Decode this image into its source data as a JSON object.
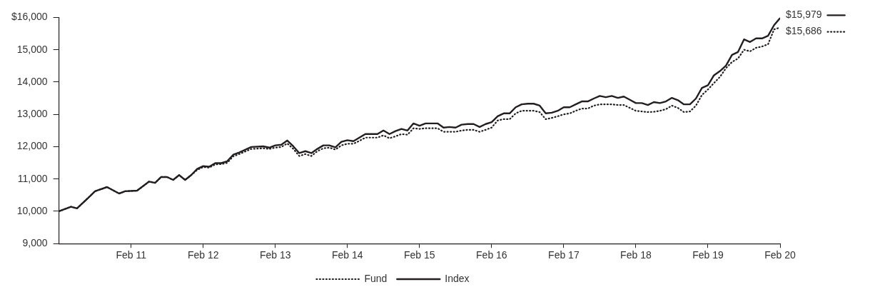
{
  "chart_data": {
    "type": "line",
    "xlim": [
      "2010-02",
      "2020-02"
    ],
    "xticks": [
      {
        "value": "2011-02",
        "label": "Feb 11"
      },
      {
        "value": "2012-02",
        "label": "Feb 12"
      },
      {
        "value": "2013-02",
        "label": "Feb 13"
      },
      {
        "value": "2014-02",
        "label": "Feb 14"
      },
      {
        "value": "2015-02",
        "label": "Feb 15"
      },
      {
        "value": "2016-02",
        "label": "Feb 16"
      },
      {
        "value": "2017-02",
        "label": "Feb 17"
      },
      {
        "value": "2018-02",
        "label": "Feb 18"
      },
      {
        "value": "2019-02",
        "label": "Feb 19"
      },
      {
        "value": "2020-02",
        "label": "Feb 20"
      }
    ],
    "ylim": [
      9000,
      16000
    ],
    "yticks": [
      {
        "value": 9000,
        "label": "9,000"
      },
      {
        "value": 10000,
        "label": "10,000"
      },
      {
        "value": 11000,
        "label": "11,000"
      },
      {
        "value": 12000,
        "label": "12,000"
      },
      {
        "value": 13000,
        "label": "13,000"
      },
      {
        "value": 14000,
        "label": "14,000"
      },
      {
        "value": 15000,
        "label": "15,000"
      },
      {
        "value": 16000,
        "label": "$16,000"
      }
    ],
    "legend": "bottom",
    "x": [
      "2010-02",
      "2010-04",
      "2010-05",
      "2010-07",
      "2010-08",
      "2010-10",
      "2010-12",
      "2011-01",
      "2011-03",
      "2011-05",
      "2011-06",
      "2011-07",
      "2011-08",
      "2011-09",
      "2011-10",
      "2011-11",
      "2011-12",
      "2012-01",
      "2012-02",
      "2012-03",
      "2012-04",
      "2012-05",
      "2012-06",
      "2012-07",
      "2012-08",
      "2012-10",
      "2012-12",
      "2013-01",
      "2013-02",
      "2013-03",
      "2013-04",
      "2013-05",
      "2013-06",
      "2013-07",
      "2013-08",
      "2013-09",
      "2013-10",
      "2013-11",
      "2013-12",
      "2014-01",
      "2014-02",
      "2014-03",
      "2014-04",
      "2014-05",
      "2014-06",
      "2014-07",
      "2014-08",
      "2014-09",
      "2014-10",
      "2014-11",
      "2014-12",
      "2015-01",
      "2015-02",
      "2015-03",
      "2015-04",
      "2015-05",
      "2015-06",
      "2015-07",
      "2015-08",
      "2015-09",
      "2015-10",
      "2015-11",
      "2015-12",
      "2016-01",
      "2016-02",
      "2016-03",
      "2016-04",
      "2016-05",
      "2016-06",
      "2016-07",
      "2016-08",
      "2016-09",
      "2016-10",
      "2016-11",
      "2016-12",
      "2017-01",
      "2017-02",
      "2017-03",
      "2017-04",
      "2017-05",
      "2017-06",
      "2017-07",
      "2017-08",
      "2017-09",
      "2017-10",
      "2017-11",
      "2017-12",
      "2018-01",
      "2018-02",
      "2018-03",
      "2018-04",
      "2018-05",
      "2018-06",
      "2018-07",
      "2018-08",
      "2018-09",
      "2018-10",
      "2018-11",
      "2018-12",
      "2019-01",
      "2019-02",
      "2019-03",
      "2019-04",
      "2019-05",
      "2019-06",
      "2019-07",
      "2019-08",
      "2019-09",
      "2019-10",
      "2019-11",
      "2019-12",
      "2020-01",
      "2020-02"
    ],
    "series": [
      {
        "name": "Fund",
        "color": "#231f20",
        "line_style": "dotted",
        "values": [
          10000,
          10140,
          10090,
          10440,
          10620,
          10750,
          10550,
          10620,
          10640,
          10920,
          10880,
          11060,
          11060,
          10970,
          11120,
          10970,
          11120,
          11280,
          11370,
          11350,
          11450,
          11460,
          11500,
          11700,
          11770,
          11930,
          11950,
          11930,
          11970,
          11990,
          12100,
          11930,
          11710,
          11770,
          11710,
          11860,
          11950,
          11970,
          11910,
          12040,
          12090,
          12090,
          12180,
          12280,
          12280,
          12280,
          12350,
          12260,
          12320,
          12390,
          12370,
          12570,
          12550,
          12570,
          12570,
          12570,
          12460,
          12460,
          12460,
          12500,
          12520,
          12520,
          12460,
          12520,
          12590,
          12810,
          12850,
          12850,
          13030,
          13110,
          13110,
          13110,
          13070,
          12850,
          12890,
          12940,
          13000,
          13030,
          13110,
          13180,
          13180,
          13270,
          13310,
          13310,
          13310,
          13290,
          13290,
          13200,
          13110,
          13090,
          13070,
          13080,
          13110,
          13160,
          13270,
          13200,
          13070,
          13090,
          13270,
          13600,
          13770,
          13970,
          14160,
          14430,
          14620,
          14730,
          15000,
          14950,
          15060,
          15100,
          15170,
          15630,
          15686
        ],
        "value_labels": [
          null,
          null,
          null,
          null,
          null,
          null,
          null,
          null,
          null,
          null,
          null,
          null,
          null,
          null,
          null,
          null,
          null,
          null,
          null,
          null,
          null,
          null,
          null,
          null,
          null,
          null,
          null,
          null,
          null,
          null,
          null,
          null,
          null,
          null,
          null,
          null,
          null,
          null,
          null,
          null,
          null,
          null,
          null,
          null,
          null,
          null,
          null,
          null,
          null,
          null,
          null,
          null,
          null,
          null,
          null,
          null,
          null,
          null,
          null,
          null,
          null,
          null,
          null,
          null,
          null,
          null,
          null,
          null,
          null,
          null,
          null,
          null,
          null,
          null,
          null,
          null,
          null,
          null,
          null,
          null,
          null,
          null,
          null,
          null,
          null,
          null,
          null,
          null,
          null,
          null,
          null,
          null,
          null,
          null,
          null,
          null,
          null,
          null,
          null,
          null,
          null,
          null,
          null,
          null,
          null,
          null,
          null,
          null,
          null,
          null,
          null,
          null,
          "$15,686"
        ]
      },
      {
        "name": "Index",
        "color": "#231f20",
        "line_style": "solid",
        "values": [
          10000,
          10140,
          10090,
          10440,
          10620,
          10750,
          10550,
          10620,
          10640,
          10920,
          10880,
          11060,
          11060,
          10970,
          11120,
          10970,
          11120,
          11310,
          11400,
          11380,
          11490,
          11490,
          11550,
          11750,
          11820,
          11990,
          12010,
          11970,
          12040,
          12060,
          12190,
          12010,
          11800,
          11860,
          11800,
          11930,
          12040,
          12040,
          11980,
          12150,
          12200,
          12170,
          12280,
          12390,
          12390,
          12390,
          12500,
          12390,
          12480,
          12550,
          12500,
          12720,
          12650,
          12720,
          12720,
          12720,
          12590,
          12610,
          12590,
          12680,
          12700,
          12700,
          12610,
          12700,
          12760,
          12940,
          13030,
          13030,
          13220,
          13310,
          13330,
          13330,
          13270,
          13030,
          13050,
          13110,
          13220,
          13220,
          13310,
          13400,
          13400,
          13490,
          13570,
          13530,
          13570,
          13510,
          13550,
          13450,
          13350,
          13350,
          13290,
          13380,
          13350,
          13400,
          13510,
          13440,
          13310,
          13310,
          13490,
          13820,
          13900,
          14210,
          14340,
          14510,
          14840,
          14930,
          15320,
          15240,
          15350,
          15350,
          15430,
          15760,
          15979
        ],
        "value_labels": [
          null,
          null,
          null,
          null,
          null,
          null,
          null,
          null,
          null,
          null,
          null,
          null,
          null,
          null,
          null,
          null,
          null,
          null,
          null,
          null,
          null,
          null,
          null,
          null,
          null,
          null,
          null,
          null,
          null,
          null,
          null,
          null,
          null,
          null,
          null,
          null,
          null,
          null,
          null,
          null,
          null,
          null,
          null,
          null,
          null,
          null,
          null,
          null,
          null,
          null,
          null,
          null,
          null,
          null,
          null,
          null,
          null,
          null,
          null,
          null,
          null,
          null,
          null,
          null,
          null,
          null,
          null,
          null,
          null,
          null,
          null,
          null,
          null,
          null,
          null,
          null,
          null,
          null,
          null,
          null,
          null,
          null,
          null,
          null,
          null,
          null,
          null,
          null,
          null,
          null,
          null,
          null,
          null,
          null,
          null,
          null,
          null,
          null,
          null,
          null,
          null,
          null,
          null,
          null,
          null,
          null,
          null,
          null,
          null,
          null,
          null,
          null,
          "$15,979"
        ]
      }
    ]
  }
}
